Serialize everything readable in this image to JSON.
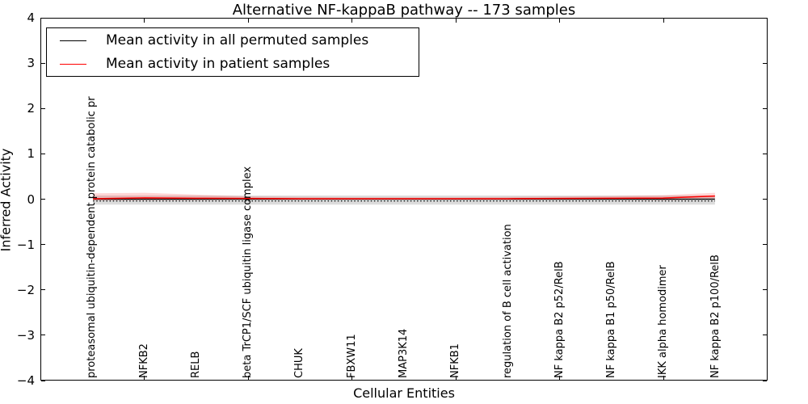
{
  "figure": {
    "background": "#ffffff",
    "title": "Alternative NF-kappaB pathway -- 173 samples"
  },
  "axes": {
    "ylabel": "Inferred Activity",
    "xlabel": "Cellular Entities",
    "y_ticks": [
      4,
      3,
      2,
      1,
      0,
      -1,
      -2,
      -3,
      -4
    ],
    "y_tick_labels": [
      "4",
      "3",
      "2",
      "1",
      "0",
      "−1",
      "−2",
      "−3",
      "−4"
    ],
    "x_tick_units": [
      2,
      4,
      6,
      8,
      10,
      12
    ]
  },
  "legend": {
    "entries": [
      {
        "label": "Mean activity in all permuted samples",
        "color": "#000000"
      },
      {
        "label": "Mean activity in patient samples",
        "color": "#ff0000"
      }
    ]
  },
  "chart_data": {
    "type": "line",
    "title": "Alternative NF-kappaB pathway -- 173 samples",
    "xlabel": "Cellular Entities",
    "ylabel": "Inferred Activity",
    "xlim": [
      0,
      14
    ],
    "ylim": [
      -4,
      4
    ],
    "grid": false,
    "legend_position": "upper left",
    "categories": [
      "proteasomal ubiquitin-dependent protein catabolic pr",
      "NFKB2",
      "RELB",
      "beta TrCP1/SCF ubiquitin ligase complex",
      "CHUK",
      "FBXW11",
      "MAP3K14",
      "NFKB1",
      "regulation of B cell activation",
      "NF kappa B2 p52/RelB",
      "NF kappa B1 p50/RelB",
      "IKK alpha homodimer",
      "NF kappa B2 p100/RelB"
    ],
    "x_positions": [
      1,
      2,
      3,
      4,
      5,
      6,
      7,
      8,
      9,
      10,
      11,
      12,
      13
    ],
    "series": [
      {
        "name": "Mean activity in all permuted samples",
        "color": "#000000",
        "line_width": 1.3,
        "values": [
          0,
          0,
          0,
          0,
          0,
          0,
          0,
          0,
          0,
          0,
          0,
          0,
          0
        ],
        "band": {
          "color": "#bfbfbf",
          "opacity": 0.55,
          "upper": [
            0.08,
            0.08,
            0.08,
            0.08,
            0.08,
            0.08,
            0.08,
            0.08,
            0.08,
            0.08,
            0.08,
            0.08,
            0.08
          ],
          "lower": [
            -0.12,
            -0.12,
            -0.12,
            -0.12,
            -0.12,
            -0.12,
            -0.12,
            -0.12,
            -0.12,
            -0.12,
            -0.12,
            -0.12,
            -0.12
          ]
        }
      },
      {
        "name": "Mean activity in patient samples",
        "color": "#ff0000",
        "line_width": 1.5,
        "values": [
          0.01,
          0.03,
          0.02,
          0.015,
          0.01,
          0.01,
          0.01,
          0.01,
          0.01,
          0.015,
          0.02,
          0.025,
          0.07
        ],
        "band": {
          "color": "#ff0000",
          "opacity": 0.16,
          "upper": [
            0.13,
            0.14,
            0.1,
            0.06,
            0.05,
            0.04,
            0.04,
            0.04,
            0.05,
            0.06,
            0.07,
            0.09,
            0.14
          ],
          "lower": [
            -0.03,
            -0.02,
            -0.02,
            -0.01,
            -0.01,
            -0.01,
            -0.01,
            -0.01,
            -0.01,
            -0.01,
            -0.01,
            -0.02,
            0.0
          ]
        }
      }
    ],
    "zero_dotted_line": {
      "value": -0.04,
      "color": "#000000"
    }
  }
}
